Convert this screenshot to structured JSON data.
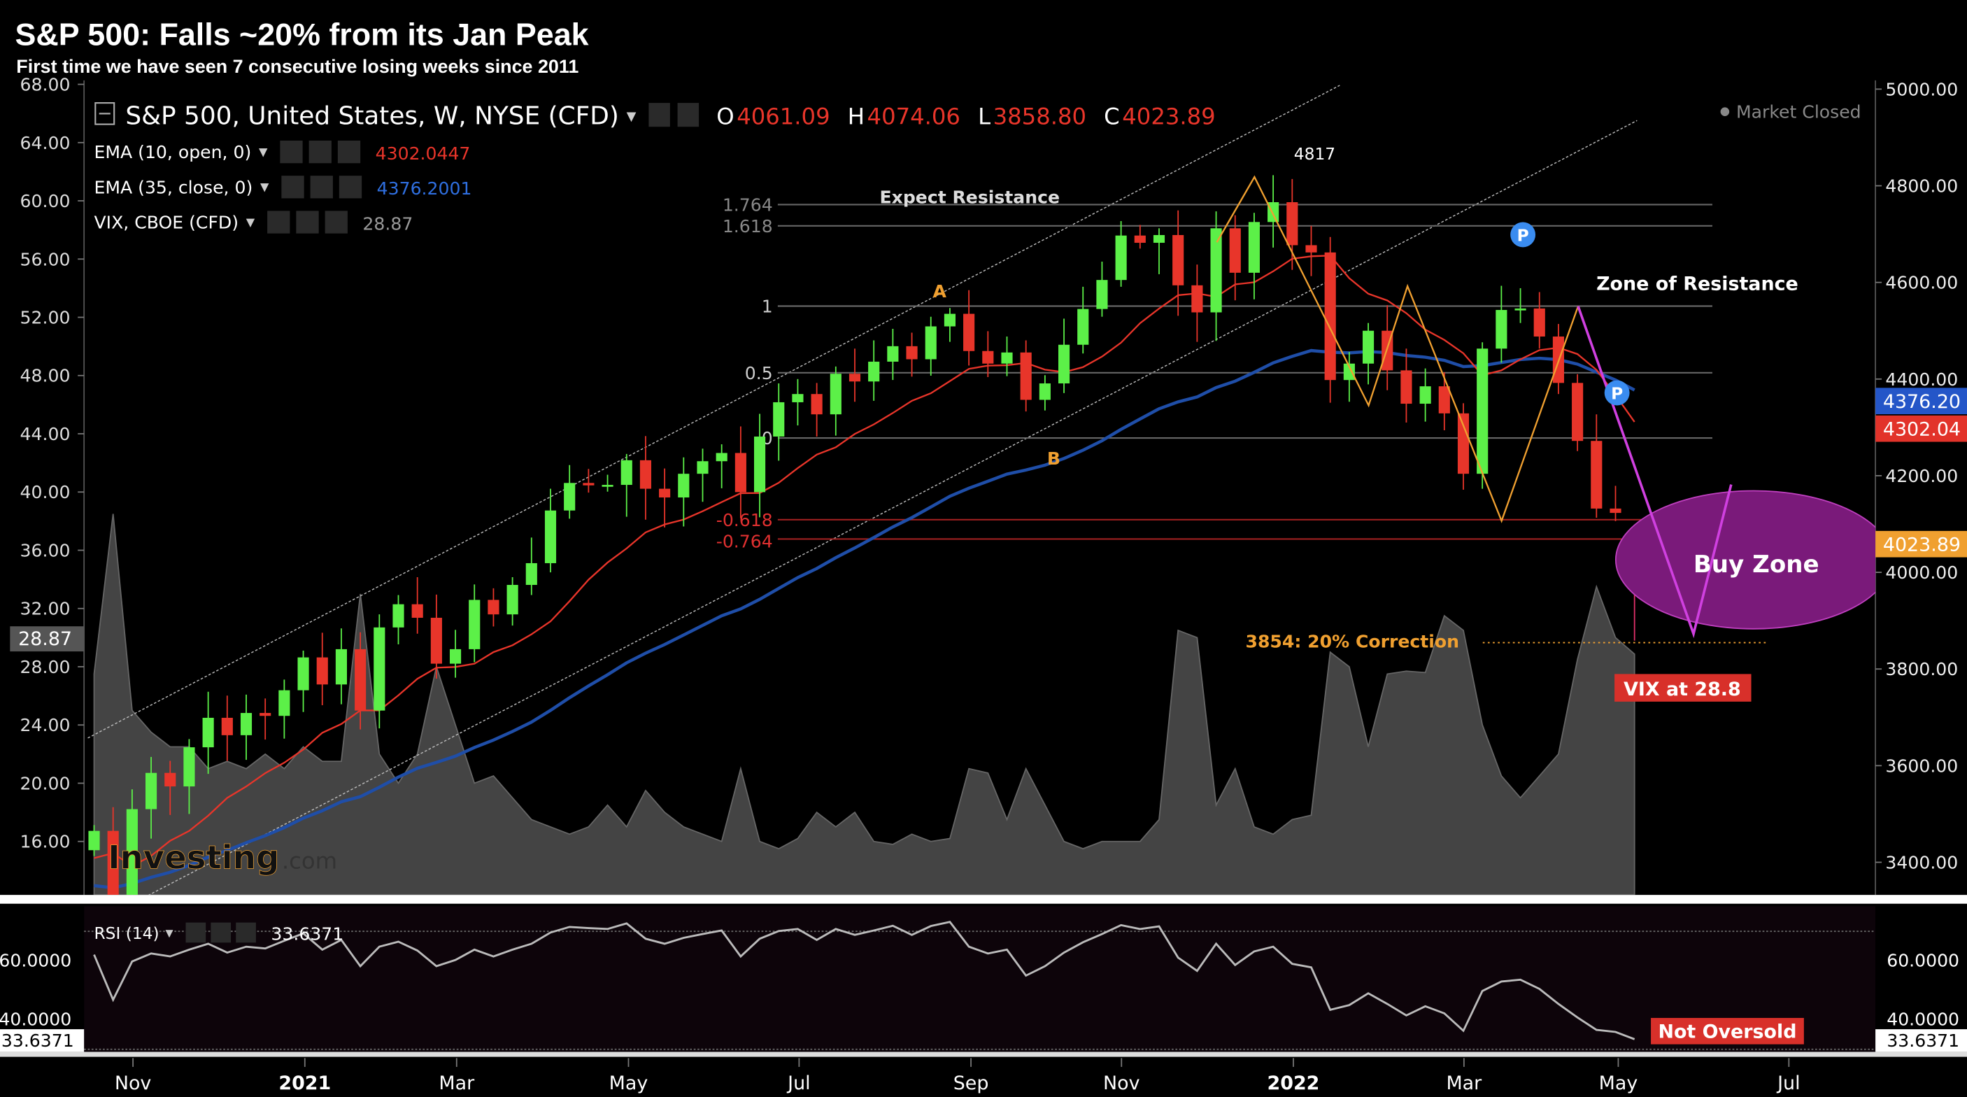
{
  "header": {
    "title": "S&P 500: Falls ~20% from its Jan Peak",
    "subtitle": "First time we have seen 7 consecutive losing weeks since 2011"
  },
  "legend": {
    "instrument": "S&P 500, United States, W, NYSE (CFD)",
    "o_label": "O",
    "o_value": "4061.09",
    "h_label": "H",
    "h_value": "4074.06",
    "l_label": "L",
    "l_value": "3858.80",
    "c_label": "C",
    "c_value": "4023.89",
    "ema10_label": "EMA (10, open, 0)",
    "ema10_value": "4302.0447",
    "ema35_label": "EMA (35, close, 0)",
    "ema35_value": "4376.2001",
    "vix_label": "VIX, CBOE (CFD)",
    "vix_value": "28.87",
    "market_status": "Market Closed",
    "rsi_label": "RSI (14)",
    "rsi_value": "33.6371"
  },
  "badges": {
    "ema35": "4376.20",
    "ema10": "4302.04",
    "close": "4023.89",
    "vix": "28.87",
    "rsi_left": "33.6371",
    "rsi_right": "33.6371"
  },
  "annotations": {
    "expect_resistance": "Expect Resistance",
    "zone_of_resistance": "Zone of Resistance",
    "point_a": "A",
    "point_b": "B",
    "peak": "4817",
    "buy_zone": "Buy Zone",
    "correction": "3854: 20% Correction",
    "vix_note": "VIX at 28.8",
    "rsi_note": "Not Oversold",
    "pivot": "P"
  },
  "watermark": {
    "brand": "Investing",
    "suffix": ".com"
  },
  "colors": {
    "up": "#5cf048",
    "down": "#e8352a",
    "ema10": "#e8352a",
    "ema35": "#1f4ea8",
    "vix_area": "#444444",
    "accent_orange": "#f0a030",
    "buy_zone": "#7a1a7a",
    "magenta": "#d040e0",
    "pivot": "#3a8cf0"
  },
  "chart_data": [
    {
      "type": "candlestick",
      "title": "S&P 500, United States, W, NYSE (CFD)",
      "x_ticks": [
        "Nov",
        "2021",
        "Mar",
        "May",
        "Jul",
        "Sep",
        "Nov",
        "2022",
        "Mar",
        "May",
        "Jul"
      ],
      "y_right_ticks": [
        "5000.00",
        "4800.00",
        "4600.00",
        "4400.00",
        "4200.00",
        "4000.00",
        "3800.00",
        "3600.00",
        "3400.00"
      ],
      "y_right_range": [
        3300,
        5000
      ],
      "start_week": "2020-10-19",
      "closes": [
        3465,
        3270,
        3510,
        3585,
        3557,
        3638,
        3699,
        3663,
        3709,
        3703,
        3756,
        3824,
        3768,
        3841,
        3714,
        3886,
        3934,
        3906,
        3811,
        3841,
        3943,
        3913,
        3974,
        4019,
        4128,
        4185,
        4180,
        4181,
        4232,
        4173,
        4155,
        4204,
        4230,
        4247,
        4166,
        4281,
        4352,
        4369,
        4327,
        4411,
        4395,
        4436,
        4468,
        4441,
        4509,
        4535,
        4458,
        4432,
        4455,
        4357,
        4391,
        4471,
        4545,
        4605,
        4697,
        4682,
        4698,
        4594,
        4538,
        4712,
        4620,
        4725,
        4766,
        4677,
        4662,
        4398,
        4432,
        4500,
        4418,
        4349,
        4385,
        4329,
        4204,
        4463,
        4543,
        4546,
        4488,
        4392,
        4272,
        4132,
        4123,
        4023.89
      ],
      "last_candle": {
        "open": 4061.09,
        "high": 4074.06,
        "low": 3858.8,
        "close": 4023.89
      },
      "ema_periods": {
        "fast": 10,
        "slow": 35
      },
      "fib_levels": [
        {
          "label": "1.764",
          "price": 4761
        },
        {
          "label": "1.618",
          "price": 4717
        },
        {
          "label": "1",
          "price": 4551
        },
        {
          "label": "0.5",
          "price": 4413
        },
        {
          "label": "0",
          "price": 4278
        },
        {
          "label": "-0.618",
          "price": 4109
        },
        {
          "label": "-0.764",
          "price": 4069
        }
      ],
      "correction_level": 3854
    },
    {
      "type": "area",
      "title": "VIX, CBOE (CFD)",
      "y_left_ticks": [
        "68.00",
        "64.00",
        "60.00",
        "56.00",
        "52.00",
        "48.00",
        "44.00",
        "40.00",
        "36.00",
        "32.00",
        "28.00",
        "24.00",
        "20.00",
        "16.00"
      ],
      "y_left_range": [
        12,
        68
      ],
      "values": [
        27.5,
        38.5,
        25,
        23.5,
        22.5,
        22.5,
        21,
        21.5,
        21,
        22,
        21,
        22.5,
        21.5,
        21.5,
        33,
        22,
        20,
        22,
        28,
        24,
        20,
        20.5,
        19,
        17.5,
        17,
        16.5,
        17,
        18.5,
        17,
        19.5,
        18,
        17,
        16.5,
        16,
        21,
        16,
        15.5,
        16.2,
        18,
        17,
        18,
        16,
        15.8,
        16.5,
        16,
        16.2,
        21,
        20.7,
        17.5,
        21,
        18.5,
        16,
        15.5,
        16,
        16,
        16,
        17.5,
        30.5,
        30,
        18.5,
        21,
        17,
        16.5,
        17.5,
        17.8,
        29,
        28,
        22.5,
        27.5,
        27.7,
        27.6,
        31.5,
        30.5,
        24,
        20.5,
        19,
        20.5,
        22,
        28.5,
        33.5,
        30,
        28.87
      ]
    },
    {
      "type": "line",
      "title": "RSI (14)",
      "y_ticks": [
        "60.0000",
        "40.0000"
      ],
      "guides": [
        70,
        30
      ],
      "values": [
        62.3,
        47,
        60,
        62.7,
        61.7,
        64,
        66,
        63,
        65,
        64.4,
        67,
        69.5,
        64,
        67.3,
        58.4,
        65,
        66.7,
        63.7,
        58.4,
        60.5,
        64,
        61.7,
        64,
        66,
        69.8,
        71.7,
        71.3,
        71,
        72.9,
        67.7,
        66,
        68,
        69.3,
        70.5,
        61.7,
        67.7,
        70.3,
        71,
        67.3,
        71,
        69,
        70.5,
        72.1,
        69,
        72,
        73.4,
        65,
        62.7,
        64,
        55.2,
        58.4,
        63,
        66.5,
        69.3,
        72.3,
        71,
        71.9,
        61.3,
        56.8,
        66,
        58.8,
        63.4,
        65,
        59.2,
        58,
        43.6,
        45.2,
        49.2,
        45.6,
        41.7,
        44.8,
        42.4,
        36.5,
        50,
        53.2,
        53.8,
        50.7,
        45.6,
        41,
        36.8,
        36.1,
        33.6371
      ]
    }
  ]
}
